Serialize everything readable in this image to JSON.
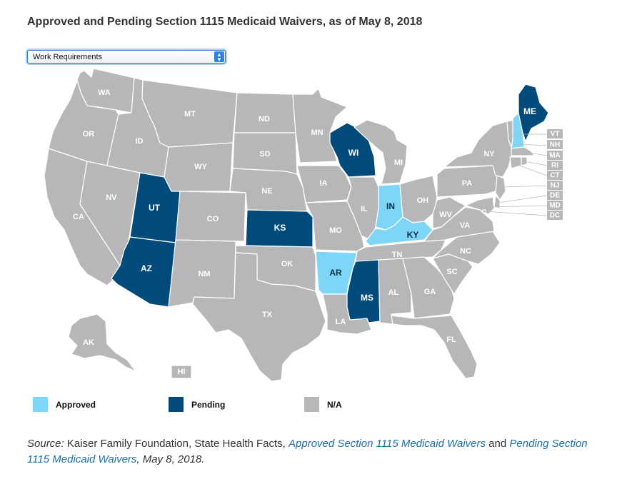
{
  "title": "Approved and Pending Section 1115 Medicaid Waivers, as of May 8, 2018",
  "dropdown": {
    "selected": "Work Requirements"
  },
  "colors": {
    "approved": "#7ed6f7",
    "pending": "#004b7c",
    "na": "#b7b7b9"
  },
  "states": {
    "WA": "na",
    "OR": "na",
    "CA": "na",
    "NV": "na",
    "ID": "na",
    "MT": "na",
    "WY": "na",
    "UT": "pending",
    "AZ": "pending",
    "CO": "na",
    "NM": "na",
    "ND": "na",
    "SD": "na",
    "NE": "na",
    "KS": "pending",
    "OK": "na",
    "TX": "na",
    "MN": "na",
    "IA": "na",
    "MO": "na",
    "AR": "approved",
    "LA": "na",
    "WI": "pending",
    "IL": "na",
    "MI": "na",
    "IN": "approved",
    "OH": "na",
    "KY": "approved",
    "TN": "na",
    "MS": "pending",
    "AL": "na",
    "GA": "na",
    "FL": "na",
    "SC": "na",
    "NC": "na",
    "VA": "na",
    "WV": "na",
    "PA": "na",
    "NY": "na",
    "ME": "pending",
    "VT": "na",
    "NH": "approved",
    "MA": "na",
    "RI": "na",
    "CT": "na",
    "NJ": "na",
    "DE": "na",
    "MD": "na",
    "DC": "na",
    "AK": "na",
    "HI": "na"
  },
  "state_labels": {
    "WA": "WA",
    "OR": "OR",
    "CA": "CA",
    "NV": "NV",
    "ID": "ID",
    "MT": "MT",
    "WY": "WY",
    "UT": "UT",
    "AZ": "AZ",
    "CO": "CO",
    "NM": "NM",
    "ND": "ND",
    "SD": "SD",
    "NE": "NE",
    "KS": "KS",
    "OK": "OK",
    "TX": "TX",
    "MN": "MN",
    "IA": "IA",
    "MO": "MO",
    "AR": "AR",
    "LA": "LA",
    "WI": "WI",
    "IL": "IL",
    "MI": "MI",
    "IN": "IN",
    "OH": "OH",
    "KY": "KY",
    "TN": "TN",
    "MS": "MS",
    "AL": "AL",
    "GA": "GA",
    "FL": "FL",
    "SC": "SC",
    "NC": "NC",
    "VA": "VA",
    "WV": "WV",
    "PA": "PA",
    "NY": "NY",
    "ME": "ME",
    "VT": "VT",
    "NH": "NH",
    "MA": "MA",
    "RI": "RI",
    "CT": "CT",
    "NJ": "NJ",
    "DE": "DE",
    "MD": "MD",
    "DC": "DC",
    "AK": "AK",
    "HI": "HI"
  },
  "legend": {
    "approved": "Approved",
    "pending": "Pending",
    "na": "N/A"
  },
  "source": {
    "label": "Source:",
    "text1": " Kaiser Family Foundation, State Health Facts, ",
    "link1": "Approved Section 1115 Medicaid Waivers",
    "text2": " and ",
    "link2": "Pending Section 1115 Medicaid Waivers",
    "text3": ", May 8, 2018."
  }
}
